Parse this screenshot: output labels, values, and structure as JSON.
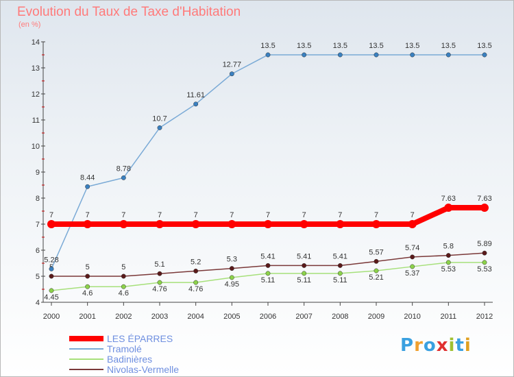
{
  "chart_data": {
    "type": "line",
    "title": "Evolution du Taux de Taxe d'Habitation",
    "subtitle": "(en %)",
    "xlabel": "",
    "ylabel": "",
    "categories": [
      "2000",
      "2001",
      "2002",
      "2003",
      "2004",
      "2005",
      "2006",
      "2007",
      "2008",
      "2009",
      "2010",
      "2011",
      "2012"
    ],
    "ylim": [
      4,
      14
    ],
    "yticks": [
      "4",
      "5",
      "6",
      "7",
      "8",
      "9",
      "10",
      "11",
      "12",
      "13",
      "14"
    ],
    "series": [
      {
        "name": "LES ÉPARRES",
        "color": "#ff0000",
        "marker": "#ff0000",
        "values": [
          7,
          7,
          7,
          7,
          7,
          7,
          7,
          7,
          7,
          7,
          7,
          7.63,
          7.63
        ],
        "labels": [
          "7",
          "7",
          "7",
          "7",
          "7",
          "7",
          "7",
          "7",
          "7",
          "7",
          "7",
          "7.63",
          "7.63"
        ]
      },
      {
        "name": "Tramolé",
        "color": "#7aaad6",
        "marker": "#3a80c0",
        "values": [
          5.28,
          8.44,
          8.78,
          10.7,
          11.61,
          12.77,
          13.5,
          13.5,
          13.5,
          13.5,
          13.5,
          13.5,
          13.5
        ],
        "labels": [
          "5.28",
          "8.44",
          "8.78",
          "10.7",
          "11.61",
          "12.77",
          "13.5",
          "13.5",
          "13.5",
          "13.5",
          "13.5",
          "13.5",
          "13.5"
        ]
      },
      {
        "name": "Badinières",
        "color": "#a6e07a",
        "marker": "#8cd24a",
        "values": [
          4.45,
          4.6,
          4.6,
          4.76,
          4.76,
          4.95,
          5.11,
          5.11,
          5.11,
          5.21,
          5.37,
          5.53,
          5.53
        ],
        "labels": [
          "4.45",
          "4.6",
          "4.6",
          "4.76",
          "4.76",
          "4.95",
          "5.11",
          "5.11",
          "5.11",
          "5.21",
          "5.37",
          "5.53",
          "5.53"
        ]
      },
      {
        "name": "Nivolas-Vermelle",
        "color": "#7a3838",
        "marker": "#5a1a1a",
        "values": [
          5,
          5,
          5,
          5.1,
          5.2,
          5.3,
          5.41,
          5.41,
          5.41,
          5.57,
          5.74,
          5.8,
          5.89
        ],
        "labels": [
          "5",
          "5",
          "5",
          "5.1",
          "5.2",
          "5.3",
          "5.41",
          "5.41",
          "5.41",
          "5.57",
          "5.74",
          "5.8",
          "5.89"
        ]
      }
    ],
    "grid": false,
    "legend_position": "bottom-left"
  },
  "logo": {
    "text": "Proxiti",
    "colors": [
      "#3aa0e0",
      "#f0a030",
      "#3aa0e0",
      "#e03030",
      "#a0c030",
      "#3aa0e0",
      "#e0a020"
    ]
  }
}
